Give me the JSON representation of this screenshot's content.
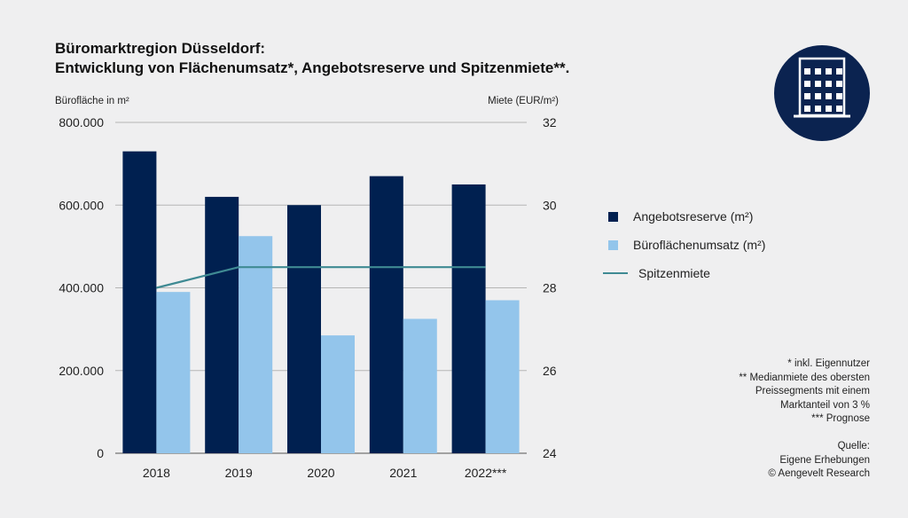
{
  "title_line1": "Büromarktregion Düsseldorf:",
  "title_line2": "Entwicklung von Flächenumsatz*, Angebotsreserve und Spitzenmiete**.",
  "icon": "office-building-icon",
  "colors": {
    "angebotsreserve": "#002050",
    "umsatz": "#93c5eb",
    "spitzenmiete": "#3f8a93",
    "icon_bg": "#0b2350"
  },
  "chart_data": {
    "type": "bar",
    "categories": [
      "2018",
      "2019",
      "2020",
      "2021",
      "2022***"
    ],
    "series": [
      {
        "name": "Angebotsreserve (m²)",
        "type": "bar",
        "axis": "left",
        "values": [
          730000,
          620000,
          600000,
          670000,
          650000
        ]
      },
      {
        "name": "Büroflächenumsatz (m²)",
        "type": "bar",
        "axis": "left",
        "values": [
          390000,
          525000,
          285000,
          325000,
          370000
        ]
      },
      {
        "name": "Spitzenmiete",
        "type": "line",
        "axis": "right",
        "values": [
          28.0,
          28.5,
          28.5,
          28.5,
          28.5
        ]
      }
    ],
    "ylabel": "Bürofläche in m²",
    "ylabel_right": "Miete (EUR/m²)",
    "ylim": [
      0,
      800000
    ],
    "ylim_right": [
      24,
      32
    ],
    "yticks": [
      "0",
      "200.000",
      "400.000",
      "600.000",
      "800.000"
    ],
    "yticks_right": [
      "24",
      "26",
      "28",
      "30",
      "32"
    ],
    "grid": true,
    "legend_position": "right"
  },
  "notes": [
    "* inkl. Eigennutzer",
    "** Medianmiete des obersten",
    "Preissegments mit einem",
    "Marktanteil von 3 %",
    "*** Prognose"
  ],
  "source": [
    "Quelle:",
    "Eigene Erhebungen",
    "© Aengevelt Research"
  ]
}
